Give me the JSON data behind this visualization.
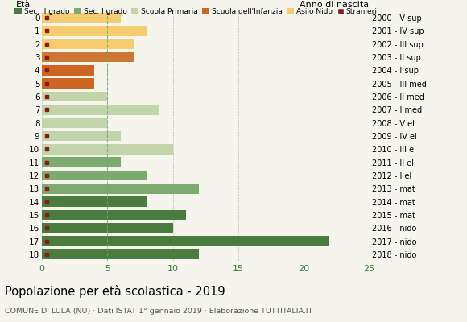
{
  "ages": [
    18,
    17,
    16,
    15,
    14,
    13,
    12,
    11,
    10,
    9,
    8,
    7,
    6,
    5,
    4,
    3,
    2,
    1,
    0
  ],
  "values": [
    12,
    22,
    10,
    11,
    8,
    12,
    8,
    6,
    10,
    6,
    5,
    9,
    5,
    4,
    4,
    7,
    7,
    8,
    6
  ],
  "right_labels": [
    "2000 - V sup",
    "2001 - IV sup",
    "2002 - III sup",
    "2003 - II sup",
    "2004 - I sup",
    "2005 - III med",
    "2006 - II med",
    "2007 - I med",
    "2008 - V el",
    "2009 - IV el",
    "2010 - III el",
    "2011 - II el",
    "2012 - I el",
    "2013 - mat",
    "2014 - mat",
    "2015 - mat",
    "2016 - nido",
    "2017 - nido",
    "2018 - nido"
  ],
  "bar_colors": [
    "#4a7c3f",
    "#4a7c3f",
    "#4a7c3f",
    "#4a7c3f",
    "#4a7c3f",
    "#7daa6f",
    "#7daa6f",
    "#7daa6f",
    "#c2d4aa",
    "#c2d4aa",
    "#c2d4aa",
    "#c2d4aa",
    "#c2d4aa",
    "#cc6622",
    "#cc6622",
    "#cc7733",
    "#f5cc70",
    "#f5cc70",
    "#f5cc70"
  ],
  "stranieri": [
    true,
    true,
    true,
    true,
    true,
    true,
    true,
    true,
    true,
    true,
    false,
    true,
    true,
    true,
    true,
    true,
    true,
    true,
    true
  ],
  "legend_labels": [
    "Sec. II grado",
    "Sec. I grado",
    "Scuola Primaria",
    "Scuola dell'Infanzia",
    "Asilo Nido",
    "Stranieri"
  ],
  "legend_colors": [
    "#4a7c3f",
    "#7daa6f",
    "#c2d4aa",
    "#cc6622",
    "#f5cc70",
    "#8b1a1a"
  ],
  "title": "Popolazione per età scolastica - 2019",
  "subtitle": "COMUNE DI LULA (NU) · Dati ISTAT 1° gennaio 2019 · Elaborazione TUTTITALIA.IT",
  "ylabel_left": "Età",
  "ylabel_right": "Anno di nascita",
  "xlim": [
    0,
    25
  ],
  "xticks": [
    0,
    5,
    10,
    15,
    20,
    25
  ],
  "dashed_line_x": 5,
  "background_color": "#f5f5ee"
}
